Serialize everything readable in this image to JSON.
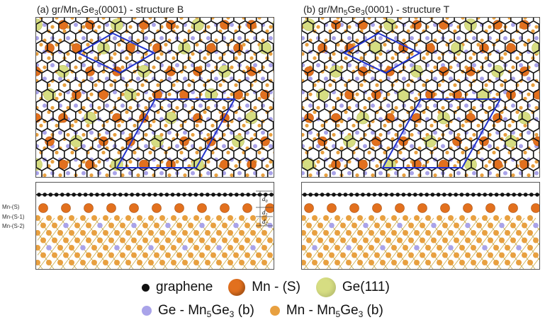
{
  "panels": [
    {
      "letter": "(a)",
      "pre": " gr/Mn",
      "s1": "5",
      "mid": "Ge",
      "s2": "3",
      "post": "(0001) - structure B"
    },
    {
      "letter": "(b)",
      "pre": " gr/Mn",
      "s1": "5",
      "mid": "Ge",
      "s2": "3",
      "post": "(0001) - structure T"
    }
  ],
  "layer_labels": [
    "Mn-(S)",
    "Mn-(S-1)",
    "Mn-(S-2)"
  ],
  "distances": [
    {
      "sym": "d",
      "sub": "0"
    },
    {
      "sym": "d",
      "sub": "1"
    },
    {
      "sym": "d",
      "sub": "2"
    }
  ],
  "legend": {
    "graphene": "graphene",
    "mn_s": "Mn - (S)",
    "ge111": "Ge(111)",
    "ge_pre": "Ge - Mn",
    "ge_s1": "5",
    "ge_mid": "Ge",
    "ge_s2": "3",
    "ge_post": " (b)",
    "mn_pre": "Mn - Mn",
    "mn_s1": "5",
    "mn_mid": "Ge",
    "mn_s2": "3",
    "mn_post": " (b)"
  },
  "colors": {
    "graphene": "#111111",
    "mn_s": "#e2701e",
    "ge111": "#d6dd82",
    "ge_bulk": "#a9a3e9",
    "mn_bulk": "#e8a040",
    "cell": "#2233cc",
    "bond": "#c8a846"
  }
}
